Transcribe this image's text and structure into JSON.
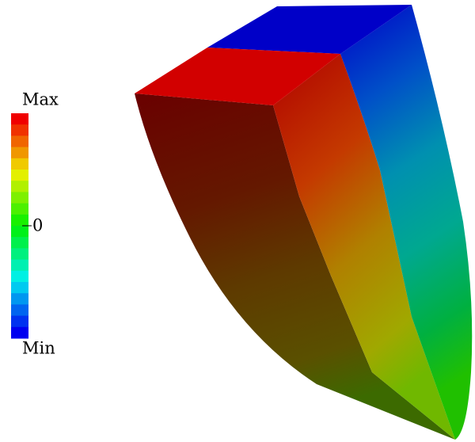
{
  "legend": {
    "max_label": "Max",
    "zero_label": "0",
    "min_label": "Min"
  }
}
